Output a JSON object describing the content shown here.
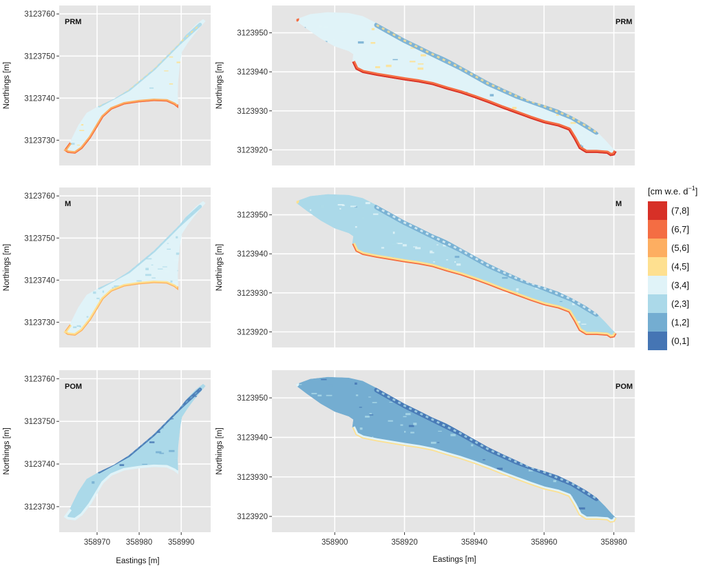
{
  "chart_data": {
    "type": "heatmap",
    "legend": {
      "title": "[cm w.e. d",
      "title_sup": "−1",
      "title_close": "]",
      "placement": "right",
      "classes": [
        {
          "label": "(7,8]",
          "color": "#d73027"
        },
        {
          "label": "(6,7]",
          "color": "#f46d43"
        },
        {
          "label": "(5,6]",
          "color": "#fdae61"
        },
        {
          "label": "(4,5]",
          "color": "#fee090"
        },
        {
          "label": "(3,4]",
          "color": "#e0f3f8"
        },
        {
          "label": "(2,3]",
          "color": "#abd9e9"
        },
        {
          "label": "(1,2]",
          "color": "#74add1"
        },
        {
          "label": "(0,1]",
          "color": "#4575b4"
        }
      ]
    },
    "xlabel": "Eastings [m]",
    "ylabel": "Northings [m]",
    "background": "#e5e5e5",
    "grid": true,
    "panels": [
      {
        "id": "left-prm",
        "label": "PRM",
        "xlim": [
          358961,
          358997
        ],
        "ylim": [
          3123724,
          3123762
        ],
        "xticks": [
          358970,
          358980,
          358990
        ],
        "yticks": [
          3123730,
          3123740,
          3123750,
          3123760
        ],
        "show_xticks": false,
        "dominant_classes": [
          "(3,4]",
          "(4,5]",
          "(2,3]",
          "(5,6]"
        ]
      },
      {
        "id": "right-prm",
        "label": "PRM",
        "xlim": [
          358882,
          358986
        ],
        "ylim": [
          3123916,
          3123957
        ],
        "xticks": [
          358900,
          358920,
          358940,
          358960,
          358980
        ],
        "yticks": [
          3123920,
          3123930,
          3123940,
          3123950
        ],
        "show_xticks": false,
        "dominant_classes": [
          "(3,4]",
          "(4,5]",
          "(2,3]",
          "(5,6]",
          "(6,7]",
          "(7,8]"
        ]
      },
      {
        "id": "left-m",
        "label": "M",
        "xlim": [
          358961,
          358997
        ],
        "ylim": [
          3123724,
          3123762
        ],
        "xticks": [
          358970,
          358980,
          358990
        ],
        "yticks": [
          3123730,
          3123740,
          3123750,
          3123760
        ],
        "show_xticks": false,
        "dominant_classes": [
          "(3,4]",
          "(2,3]",
          "(4,5]",
          "(5,6]"
        ]
      },
      {
        "id": "right-m",
        "label": "M",
        "xlim": [
          358882,
          358986
        ],
        "ylim": [
          3123916,
          3123957
        ],
        "xticks": [
          358900,
          358920,
          358940,
          358960,
          358980
        ],
        "yticks": [
          3123920,
          3123930,
          3123940,
          3123950
        ],
        "show_xticks": false,
        "dominant_classes": [
          "(2,3]",
          "(3,4]",
          "(1,2]",
          "(4,5]",
          "(5,6]"
        ]
      },
      {
        "id": "left-pom",
        "label": "POM",
        "xlim": [
          358961,
          358997
        ],
        "ylim": [
          3123724,
          3123762
        ],
        "xticks": [
          358970,
          358980,
          358990
        ],
        "yticks": [
          3123730,
          3123740,
          3123750,
          3123760
        ],
        "show_xticks": true,
        "dominant_classes": [
          "(1,2]",
          "(2,3]",
          "(0,1]",
          "(3,4]"
        ]
      },
      {
        "id": "right-pom",
        "label": "POM",
        "xlim": [
          358882,
          358986
        ],
        "ylim": [
          3123916,
          3123957
        ],
        "xticks": [
          358900,
          358920,
          358940,
          358960,
          358980
        ],
        "yticks": [
          3123920,
          3123930,
          3123940,
          3123950
        ],
        "show_xticks": true,
        "dominant_classes": [
          "(1,2]",
          "(2,3]",
          "(0,1]",
          "(3,4]"
        ]
      }
    ]
  }
}
